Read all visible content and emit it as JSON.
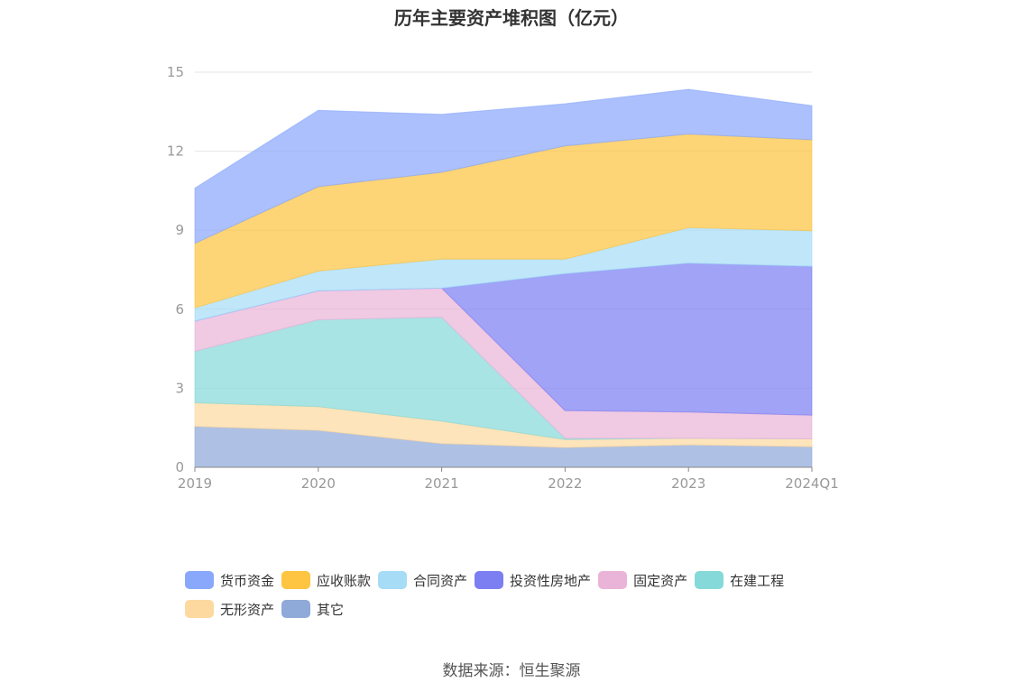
{
  "title": "历年主要资产堆积图（亿元）",
  "source": "数据来源：恒生聚源",
  "chart_data": {
    "type": "area",
    "title": "历年主要资产堆积图（亿元）",
    "stacked": true,
    "x": [
      "2019",
      "2020",
      "2021",
      "2022",
      "2023",
      "2024Q1"
    ],
    "y_ticks": [
      "0",
      "3",
      "6",
      "9",
      "12",
      "15"
    ],
    "ylim": [
      0,
      15
    ],
    "grid": true,
    "legend_position": "bottom",
    "series": [
      {
        "name": "其它",
        "color": "#8fa9d9",
        "values": [
          1.55,
          1.4,
          0.9,
          0.75,
          0.85,
          0.78
        ]
      },
      {
        "name": "无形资产",
        "color": "#fdd9a0",
        "values": [
          0.9,
          0.9,
          0.85,
          0.3,
          0.25,
          0.3
        ]
      },
      {
        "name": "在建工程",
        "color": "#86d9d9",
        "values": [
          1.95,
          3.3,
          3.95,
          0.05,
          0.0,
          0.0
        ]
      },
      {
        "name": "固定资产",
        "color": "#eab4d8",
        "values": [
          1.15,
          1.1,
          1.1,
          1.05,
          1.0,
          0.9
        ]
      },
      {
        "name": "投资性房地产",
        "color": "#7b7ff2",
        "values": [
          0.0,
          0.0,
          0.0,
          5.2,
          5.65,
          5.65
        ]
      },
      {
        "name": "合同资产",
        "color": "#a6dcf6",
        "values": [
          0.5,
          0.75,
          1.1,
          0.55,
          1.35,
          1.35
        ]
      },
      {
        "name": "应收账款",
        "color": "#fdc541",
        "values": [
          2.45,
          3.2,
          3.3,
          4.3,
          3.55,
          3.45
        ]
      },
      {
        "name": "货币资金",
        "color": "#8aa8fb",
        "values": [
          2.1,
          2.9,
          2.2,
          1.6,
          1.7,
          1.3
        ]
      }
    ]
  },
  "legend": {
    "row1": [
      {
        "label": "货币资金",
        "color": "#8aa8fb"
      },
      {
        "label": "应收账款",
        "color": "#fdc541"
      },
      {
        "label": "合同资产",
        "color": "#a6dcf6"
      },
      {
        "label": "投资性房地产",
        "color": "#7b7ff2"
      },
      {
        "label": "固定资产",
        "color": "#eab4d8"
      },
      {
        "label": "在建工程",
        "color": "#86d9d9"
      }
    ],
    "row2": [
      {
        "label": "无形资产",
        "color": "#fdd9a0"
      },
      {
        "label": "其它",
        "color": "#8fa9d9"
      }
    ]
  }
}
